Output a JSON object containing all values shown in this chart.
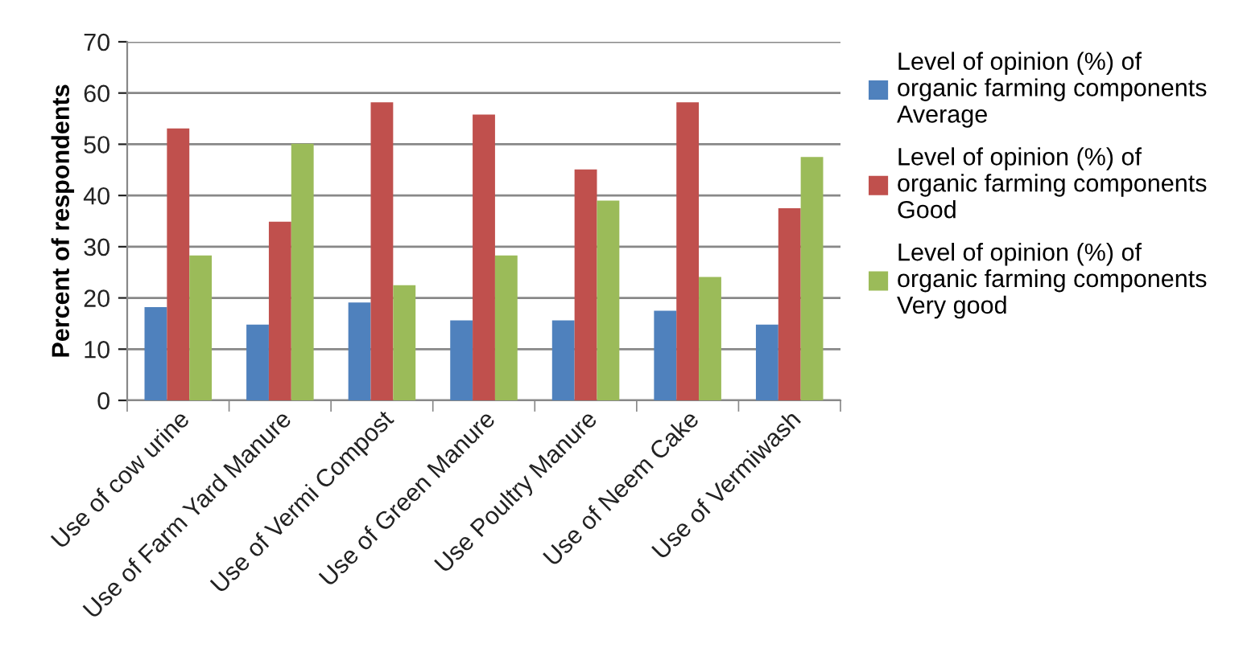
{
  "chart_data": {
    "type": "bar",
    "ylabel": "Percent of respondents",
    "categories": [
      "Use of cow urine",
      "Use of Farm Yard Manure",
      "Use of Vermi Compost",
      "Use of Green Manure",
      "Use Poultry Manure",
      "Use of Neem Cake",
      "Use of Vermiwash"
    ],
    "series": [
      {
        "name": "Level of opinion (%) of organic farming components  Average",
        "color": "#4f81bd",
        "values": [
          18.2,
          14.8,
          19.1,
          15.6,
          15.6,
          17.5,
          14.8
        ]
      },
      {
        "name": "Level of opinion (%) of organic farming components  Good",
        "color": "#c0504d",
        "values": [
          53.1,
          34.9,
          58.2,
          55.8,
          45.1,
          58.2,
          37.5
        ]
      },
      {
        "name": "Level of opinion (%) of organic farming components  Very good",
        "color": "#9bbb59",
        "values": [
          28.3,
          50.1,
          22.5,
          28.3,
          39.0,
          24.1,
          47.5
        ]
      }
    ],
    "ylim": [
      0,
      70
    ],
    "yticks": [
      0,
      10,
      20,
      30,
      40,
      50,
      60,
      70
    ],
    "grid": "y",
    "legend": "right"
  }
}
